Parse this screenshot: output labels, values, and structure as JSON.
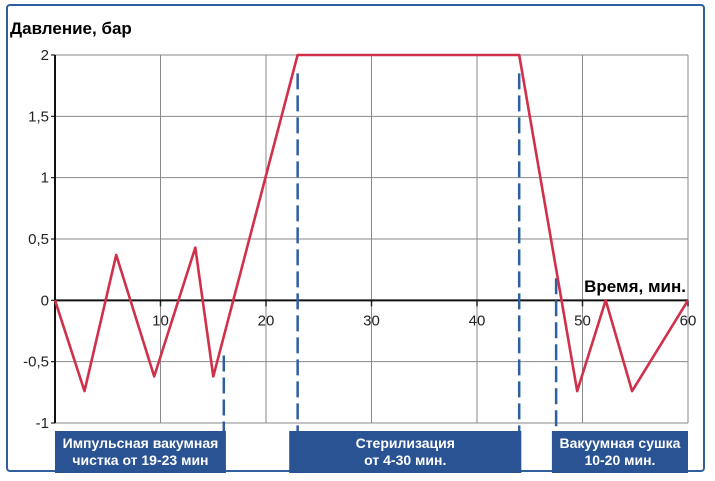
{
  "chart_data": {
    "type": "line",
    "ylabel": "Давление, бар",
    "xlabel": "Время, мин.",
    "xlim": [
      0,
      60
    ],
    "ylim": [
      -1,
      2
    ],
    "grid": true,
    "x_ticks": [
      {
        "value": 10,
        "label": "10"
      },
      {
        "value": 20,
        "label": "20"
      },
      {
        "value": 30,
        "label": "30"
      },
      {
        "value": 40,
        "label": "40"
      },
      {
        "value": 50,
        "label": "50"
      },
      {
        "value": 60,
        "label": "60"
      }
    ],
    "y_ticks": [
      {
        "value": 2,
        "label": "2"
      },
      {
        "value": 1.5,
        "label": "1,5"
      },
      {
        "value": 1,
        "label": "1"
      },
      {
        "value": 0.5,
        "label": "0,5"
      },
      {
        "value": 0,
        "label": "0"
      },
      {
        "value": -0.5,
        "label": "-0,5"
      },
      {
        "value": -1,
        "label": "-1"
      }
    ],
    "series": [
      {
        "color": "#d0304a",
        "x": [
          0,
          2.8,
          5.8,
          9.4,
          13.3,
          15.0,
          23.0,
          44.0,
          49.5,
          52.2,
          54.7,
          60.0
        ],
        "y": [
          0,
          -0.74,
          0.37,
          -0.62,
          0.43,
          -0.62,
          2.0,
          2.0,
          -0.74,
          0.0,
          -0.74,
          0.0
        ]
      }
    ],
    "markers": [
      {
        "x": 16.0,
        "y_from": -0.45,
        "y_to": -1.0
      },
      {
        "x": 23.0,
        "y_from": 1.85,
        "y_to": -1.0
      },
      {
        "x": 44.0,
        "y_from": 1.85,
        "y_to": -1.0
      },
      {
        "x": 47.5,
        "y_from": 0.18,
        "y_to": -1.0
      }
    ],
    "phases": [
      {
        "label": [
          "Импульсная вакумная",
          "чистка от 19-23 мин"
        ],
        "x_start": 0.0,
        "x_end": 16.2
      },
      {
        "label": [
          "Стерилизация",
          "от 4-30 мин."
        ],
        "x_start": 22.2,
        "x_end": 44.2
      },
      {
        "label": [
          "Вакуумная сушка",
          "10-20 мин."
        ],
        "x_start": 47.1,
        "x_end": 60.0
      }
    ],
    "colors": {
      "line": "#d0304a",
      "marker": "#2f5f9e",
      "phase_box": "#2a5393",
      "grid": "#8a8a8a",
      "frame": "#2f5f9e"
    }
  }
}
